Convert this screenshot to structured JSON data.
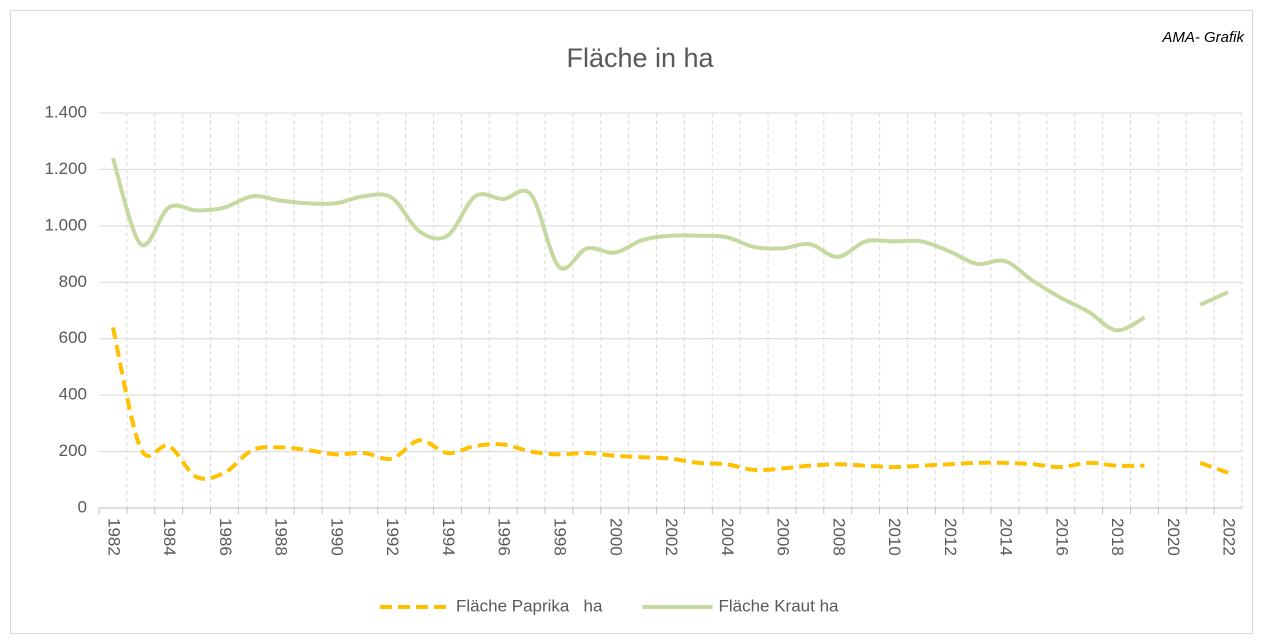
{
  "chart_data": {
    "type": "line",
    "title": "Fläche in ha",
    "annotation": "AMA- Grafik",
    "categories": [
      "1982",
      null,
      "1984",
      null,
      "1986",
      null,
      "1988",
      null,
      "1990",
      null,
      "1992",
      null,
      "1994",
      null,
      "1996",
      null,
      "1998",
      null,
      "2000",
      null,
      "2002",
      null,
      "2004",
      null,
      "2006",
      null,
      "2008",
      null,
      "2010",
      null,
      "2012",
      null,
      "2014",
      null,
      "2016",
      null,
      "2018",
      null,
      "2020",
      null,
      "2022"
    ],
    "series": [
      {
        "name": "Fläche Paprika   ha",
        "color": "#ffc000",
        "dashed": true,
        "values": [
          640,
          210,
          220,
          110,
          125,
          205,
          215,
          205,
          190,
          195,
          175,
          240,
          195,
          220,
          225,
          200,
          190,
          195,
          185,
          180,
          175,
          160,
          155,
          135,
          140,
          150,
          155,
          150,
          145,
          150,
          155,
          160,
          160,
          155,
          145,
          160,
          150,
          150,
          null,
          160,
          125
        ]
      },
      {
        "name": "Fläche Kraut ha",
        "color": "#c5d9a0",
        "dashed": false,
        "values": [
          1240,
          935,
          1065,
          1055,
          1065,
          1105,
          1090,
          1080,
          1080,
          1105,
          1100,
          980,
          965,
          1105,
          1095,
          1110,
          855,
          920,
          905,
          950,
          965,
          965,
          960,
          925,
          920,
          935,
          890,
          945,
          945,
          945,
          910,
          865,
          875,
          805,
          745,
          695,
          630,
          675,
          null,
          720,
          765
        ]
      }
    ],
    "ylim": [
      0,
      1400
    ],
    "yticks": [
      0,
      200,
      400,
      600,
      800,
      {
        "value": 1000,
        "label": "1.000"
      },
      {
        "value": 1200,
        "label": "1.200"
      },
      {
        "value": 1400,
        "label": "1.400"
      }
    ],
    "grid": true,
    "legend": "bottom"
  }
}
